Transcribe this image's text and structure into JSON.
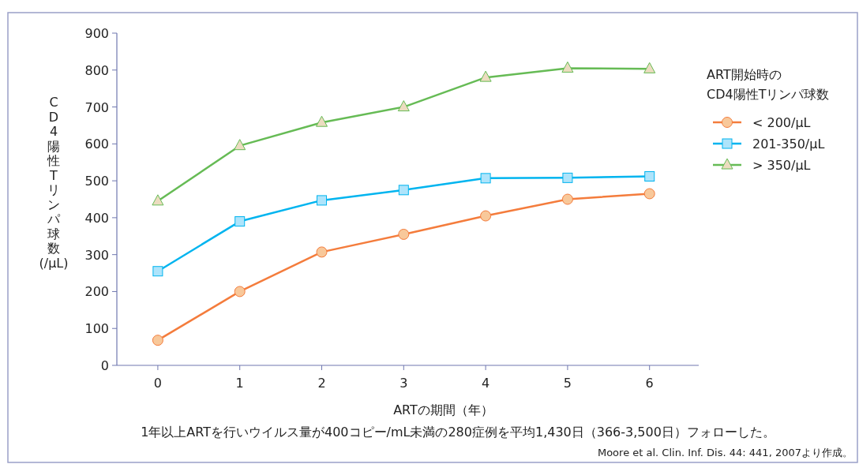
{
  "chart_data": {
    "type": "line",
    "xlabel": "ARTの期間（年）",
    "ylabel": "CD4陽性Tリンパ球数(/μL)",
    "legend_title": "ART開始時の\nCD4陽性Tリンパ球数",
    "x": [
      0,
      1,
      2,
      3,
      4,
      5,
      6
    ],
    "xlim": [
      -0.5,
      6.6
    ],
    "xticks": [
      0,
      1,
      2,
      3,
      4,
      5,
      6
    ],
    "ylim": [
      0,
      900
    ],
    "yticks": [
      0,
      100,
      200,
      300,
      400,
      500,
      600,
      700,
      800,
      900
    ],
    "series": [
      {
        "name": "< 200/μL",
        "color": "#f47c3c",
        "marker": "circle",
        "values": [
          68,
          200,
          307,
          355,
          405,
          450,
          465
        ]
      },
      {
        "name": "201-350/μL",
        "color": "#00b4ef",
        "marker": "square",
        "values": [
          255,
          390,
          447,
          475,
          507,
          508,
          512
        ]
      },
      {
        "name": "> 350/μL",
        "color": "#66bb55",
        "marker": "triangle",
        "values": [
          445,
          595,
          658,
          700,
          780,
          805,
          803
        ]
      }
    ],
    "legend": "right",
    "grid": false,
    "annotations": [
      "1年以上ARTを行いウイルス量が400コピー/mL未満の280症例を平均1,430日（366-3,500日）フォローした。",
      "Moore et al. Clin. Inf. Dis. 44: 441, 2007より作成。"
    ]
  }
}
